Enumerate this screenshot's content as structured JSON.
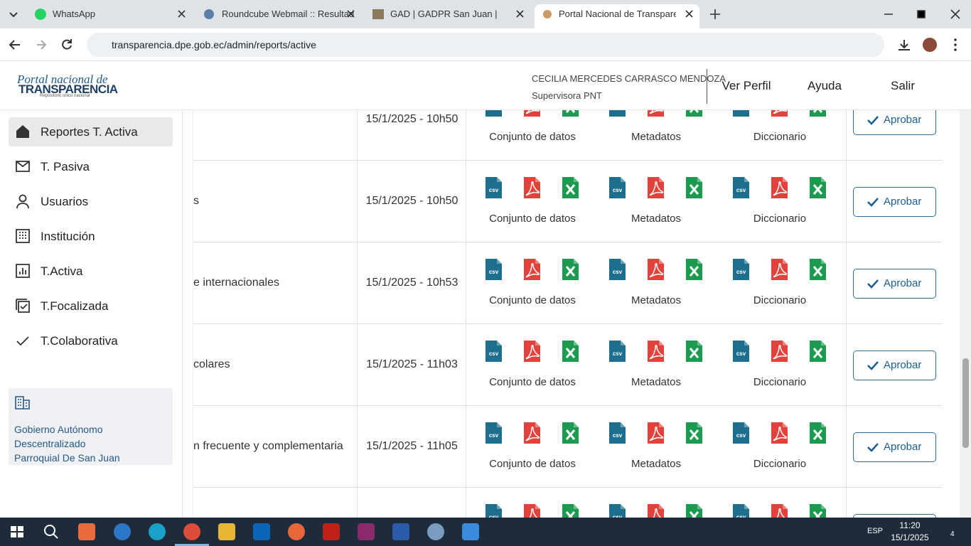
{
  "browser": {
    "tabs": [
      "WhatsApp",
      "Roundcube Webmail :: Resultad",
      "GAD | GADPR San Juan |",
      "Portal Nacional de Transparenci"
    ],
    "address": "transparencia.dpe.gob.ec/admin/reports/active"
  },
  "header": {
    "logo_script": "Portal nacional de",
    "logo_title": "TRANSPARENCIA",
    "logo_sub": "Repositorio único nacional",
    "user_name": "CECILIA MERCEDES CARRASCO MENDOZA",
    "user_role": "Supervisora PNT",
    "nav": [
      "Ver Perfil",
      "Ayuda",
      "Salir"
    ]
  },
  "sidebar": {
    "menu": [
      "Reportes T. Activa",
      "T. Pasiva",
      "Usuarios",
      "Institución",
      "T.Activa",
      "T.Focalizada",
      "T.Colaborativa"
    ],
    "institution": [
      "Gobierno Autónomo",
      "Descentralizado",
      "Parroquial De San Juan"
    ]
  },
  "table": {
    "file_groups": [
      "Conjunto de datos",
      "Metadatos",
      "Diccionario"
    ],
    "icon_label": "csv",
    "action": "Aprobar",
    "rows": [
      {
        "name": null,
        "date": "15/1/2025 - 10h50"
      },
      {
        "name": "s",
        "date": "15/1/2025 - 10h50"
      },
      {
        "name": "e internacionales",
        "date": "15/1/2025 - 10h53"
      },
      {
        "name": "colares",
        "date": "15/1/2025 - 11h03"
      },
      {
        "name": "n frecuente y complementaria",
        "date": "15/1/2025 - 11h05"
      },
      {
        "name": null,
        "date": null
      }
    ]
  },
  "taskbar": {
    "language": "ESP",
    "time": "11:20",
    "date": "15/1/2025",
    "notifications": "4"
  }
}
